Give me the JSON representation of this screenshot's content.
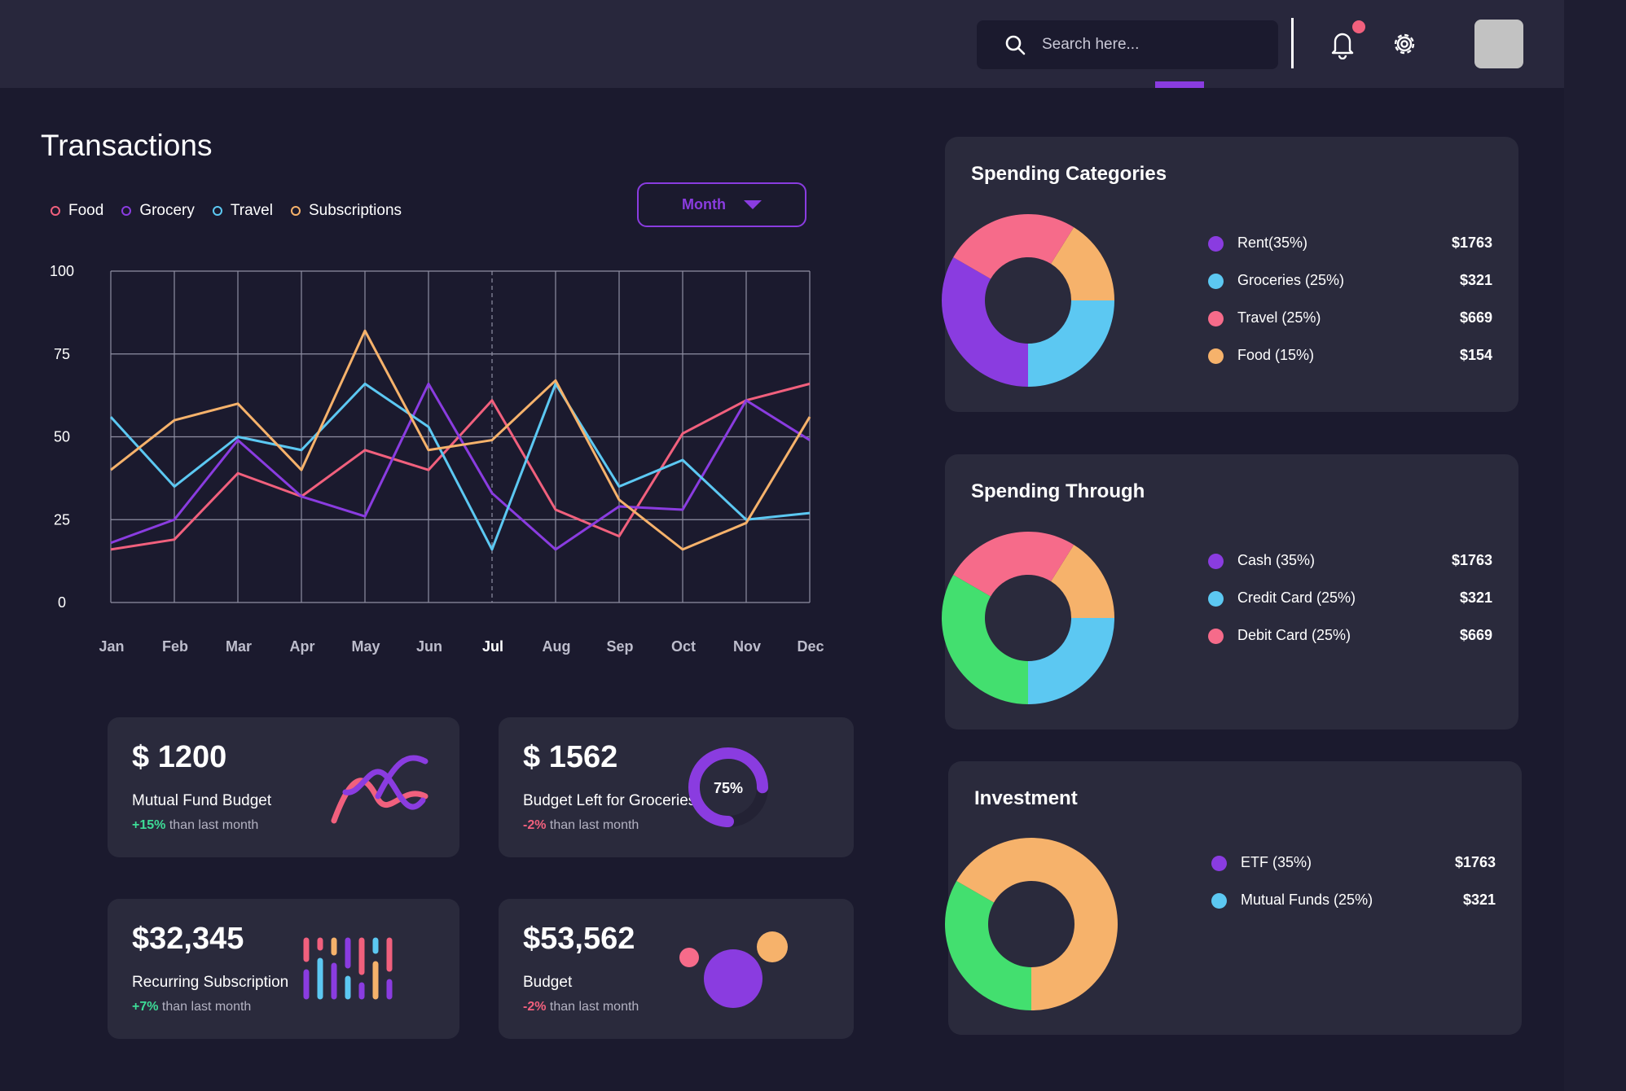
{
  "header": {
    "search_placeholder": "Search here..."
  },
  "transactions": {
    "title": "Transactions",
    "period_button": "Month",
    "legend": [
      {
        "label": "Food",
        "color": "#f1607d"
      },
      {
        "label": "Grocery",
        "color": "#8a3ce0"
      },
      {
        "label": "Travel",
        "color": "#5cc8f2"
      },
      {
        "label": "Subscriptions",
        "color": "#f6b26b"
      }
    ]
  },
  "chart_data": {
    "type": "line",
    "title": "Transactions",
    "categories": [
      "Jan",
      "Feb",
      "Mar",
      "Apr",
      "May",
      "Jun",
      "Jul",
      "Aug",
      "Sep",
      "Oct",
      "Nov",
      "Dec"
    ],
    "highlight_category": "Jul",
    "yticks": [
      0,
      25,
      50,
      75,
      100
    ],
    "ylim": [
      0,
      100
    ],
    "grid": true,
    "series": [
      {
        "name": "Food",
        "color": "#f1607d",
        "values": [
          16,
          19,
          39,
          32,
          46,
          40,
          61,
          28,
          20,
          51,
          61,
          66
        ]
      },
      {
        "name": "Grocery",
        "color": "#8a3ce0",
        "values": [
          18,
          25,
          49,
          32,
          26,
          66,
          33,
          16,
          29,
          28,
          61,
          49
        ]
      },
      {
        "name": "Travel",
        "color": "#5cc8f2",
        "values": [
          56,
          35,
          50,
          46,
          66,
          53,
          16,
          66,
          35,
          43,
          25,
          27
        ]
      },
      {
        "name": "Subscriptions",
        "color": "#f6b26b",
        "values": [
          40,
          55,
          60,
          40,
          82,
          46,
          49,
          67,
          31,
          16,
          24,
          56
        ]
      }
    ]
  },
  "cards": [
    {
      "value": "$ 1200",
      "label": "Mutual Fund Budget",
      "change": "+15%",
      "change_text": "than last month"
    },
    {
      "value": "$ 1562",
      "label": "Budget Left for Groceries",
      "change": "-2%",
      "change_text": "than last month",
      "ring_label": "75%",
      "ring_value": 0.75
    },
    {
      "value": "$32,345",
      "label": "Recurring Subscription",
      "change": "+7%",
      "change_text": "than last month"
    },
    {
      "value": "$53,562",
      "label": "Budget",
      "change": "-2%",
      "change_text": "than last month"
    }
  ],
  "spending_categories": {
    "title": "Spending Categories",
    "items": [
      {
        "label": "Rent(35%)",
        "value": "$1763",
        "color": "#8a3ce0",
        "share": 35
      },
      {
        "label": "Groceries (25%)",
        "value": "$321",
        "color": "#5cc8f2",
        "share": 25
      },
      {
        "label": "Travel (25%)",
        "value": "$669",
        "color": "#f66b8a",
        "share": 25
      },
      {
        "label": "Food (15%)",
        "value": "$154",
        "color": "#f6b26b",
        "share": 15
      }
    ]
  },
  "spending_through": {
    "title": "Spending Through",
    "items": [
      {
        "label": "Cash (35%)",
        "value": "$1763",
        "color": "#8a3ce0",
        "share": 35
      },
      {
        "label": "Credit Card (25%)",
        "value": "$321",
        "color": "#5cc8f2",
        "share": 25
      },
      {
        "label": "Debit Card (25%)",
        "value": "$669",
        "color": "#f66b8a",
        "share": 25
      }
    ]
  },
  "investment": {
    "title": "Investment",
    "items": [
      {
        "label": "ETF (35%)",
        "value": "$1763",
        "color": "#8a3ce0",
        "share": 35
      },
      {
        "label": "Mutual Funds  (25%)",
        "value": "$321",
        "color": "#5cc8f2",
        "share": 25
      }
    ]
  },
  "colors": {
    "background": "#1b1a2e",
    "panel": "#2a2a3c",
    "accent": "#8a3ce0",
    "positive": "#3ddc97",
    "negative": "#f1607d",
    "green": "#43df6f",
    "orange": "#f6b26b"
  }
}
